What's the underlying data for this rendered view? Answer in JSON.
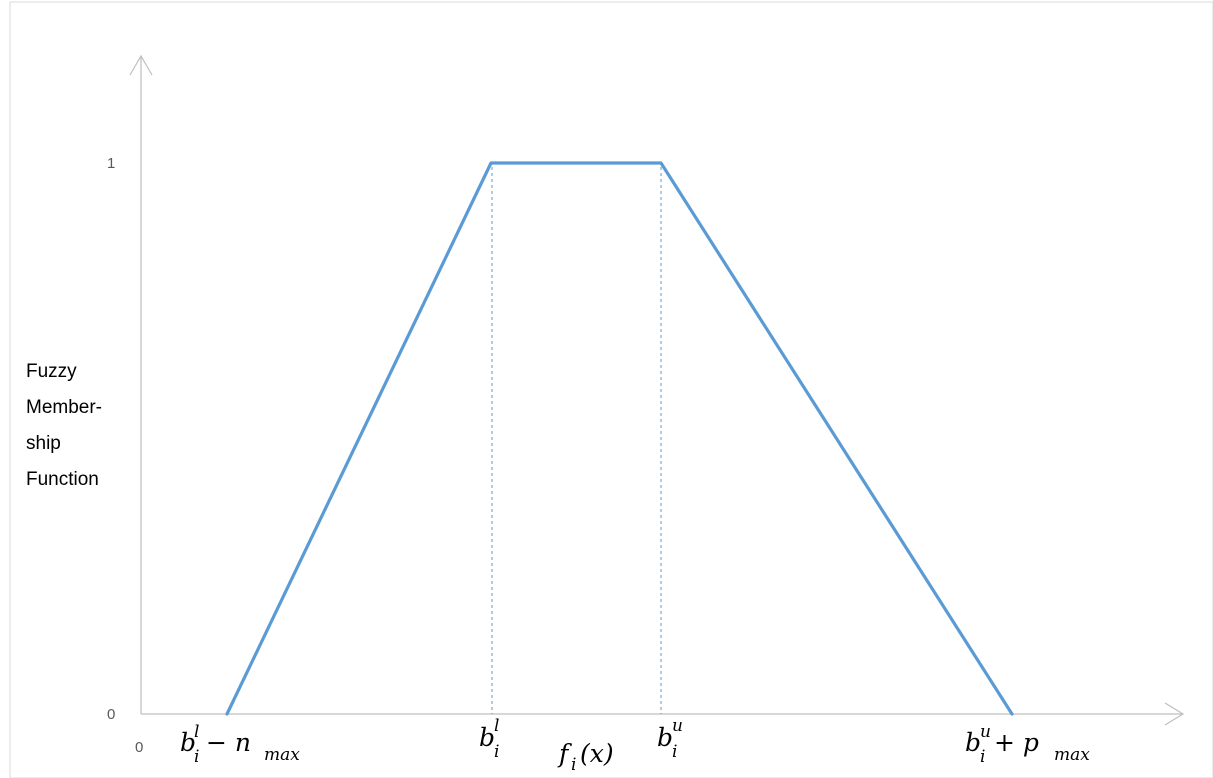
{
  "chart_data": {
    "type": "line",
    "ylabel_lines": [
      "Fuzzy",
      "Member-",
      "ship",
      "Function"
    ],
    "y_ticks": [
      "0",
      "1"
    ],
    "x_origin_label": "0",
    "x_label": {
      "main": "f",
      "sub": "i",
      "tail": "(x)"
    },
    "x_ticks": [
      {
        "main": "b",
        "sup": "l",
        "sub": "i",
        "tail": " − n",
        "tail_sub": "max"
      },
      {
        "main": "b",
        "sup": "l",
        "sub": "i",
        "tail": "",
        "tail_sub": ""
      },
      {
        "main": "b",
        "sup": "u",
        "sub": "i",
        "tail": "",
        "tail_sub": ""
      },
      {
        "main": "b",
        "sup": "u",
        "sub": "i",
        "tail": " + p",
        "tail_sub": "max"
      }
    ],
    "series": [
      {
        "x": [
          1,
          2,
          3,
          4
        ],
        "y": [
          0,
          1,
          1,
          0
        ],
        "color": "#5b9bd5"
      }
    ],
    "guides": [
      2,
      3
    ],
    "ylim": [
      0,
      1
    ],
    "grid": false
  }
}
